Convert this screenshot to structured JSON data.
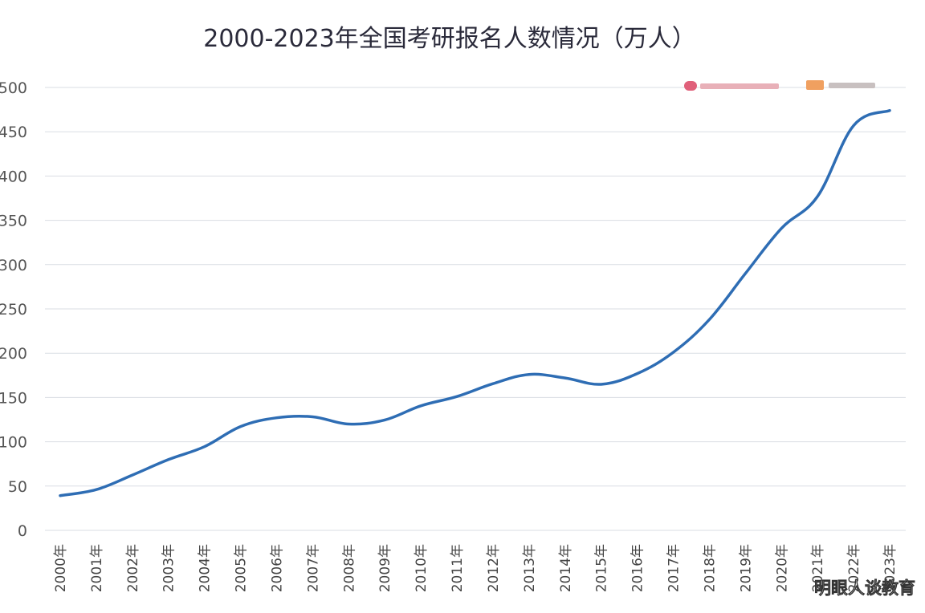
{
  "chart_data": {
    "type": "line",
    "title": "2000-2023年全国考研报名人数情况（万人）",
    "categories": [
      "2000年",
      "2001年",
      "2002年",
      "2003年",
      "2004年",
      "2005年",
      "2006年",
      "2007年",
      "2008年",
      "2009年",
      "2010年",
      "2011年",
      "2012年",
      "2013年",
      "2014年",
      "2015年",
      "2016年",
      "2017年",
      "2018年",
      "2019年",
      "2020年",
      "2021年",
      "2022年",
      "2023年"
    ],
    "series": [
      {
        "values": [
          39.2,
          46.0,
          62.4,
          79.9,
          94.5,
          117.2,
          127.1,
          128.2,
          120.0,
          124.6,
          140.6,
          151.1,
          165.6,
          176.0,
          172.0,
          164.9,
          177.0,
          201.0,
          238.0,
          290.0,
          341.0,
          377.0,
          457.0,
          474.0
        ],
        "color": "#2e6db4"
      }
    ],
    "ylim": [
      0,
      500
    ],
    "yticks": [
      0,
      50,
      100,
      150,
      200,
      250,
      300,
      350,
      400,
      450,
      500
    ],
    "ytick_labels": [
      "0",
      "50",
      "100",
      "150",
      "200",
      "250",
      "300",
      "350",
      "400",
      "450",
      "500"
    ],
    "grid": true,
    "legend_position": "top-right"
  },
  "legend": {
    "item1_color": "#e0607a",
    "item2_color": "#f0a060"
  },
  "watermark": "明眼人谈教育"
}
